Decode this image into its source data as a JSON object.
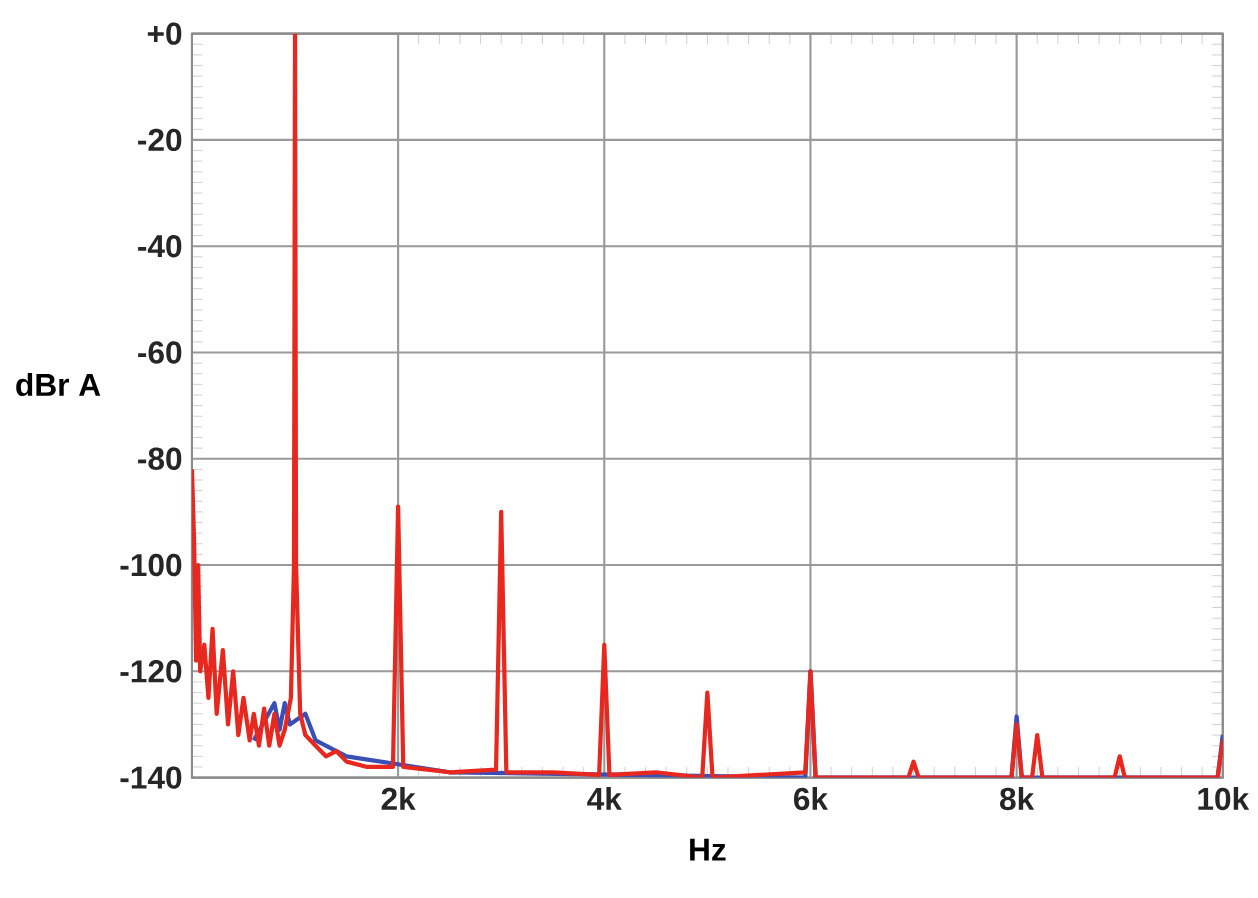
{
  "chart_data": {
    "type": "line",
    "xlabel": "Hz",
    "ylabel": "dBr A",
    "xlim": [
      0,
      10000
    ],
    "ylim": [
      -140,
      0
    ],
    "xticks": [
      {
        "value": 2000,
        "label": "2k"
      },
      {
        "value": 4000,
        "label": "4k"
      },
      {
        "value": 6000,
        "label": "6k"
      },
      {
        "value": 8000,
        "label": "8k"
      },
      {
        "value": 10000,
        "label": "10k"
      }
    ],
    "yticks": [
      -140,
      -120,
      -100,
      -80,
      -60,
      -40,
      -20,
      {
        "value": 0,
        "label": "+0"
      }
    ],
    "grid": true,
    "series": [
      {
        "color": "#3a4fb5",
        "x": [
          600,
          800,
          850,
          900,
          950,
          1100,
          1200,
          1500,
          2500,
          5950,
          6000,
          6050,
          7950,
          8000,
          8050,
          9950,
          10000
        ],
        "values": [
          -133,
          -126,
          -131,
          -126,
          -130,
          -128,
          -133,
          -136,
          -139,
          -140,
          -120,
          -140,
          -140,
          -128.5,
          -140,
          -140,
          -132
        ]
      },
      {
        "color": "#e8281e",
        "x": [
          0,
          20,
          40,
          60,
          80,
          120,
          160,
          200,
          240,
          300,
          350,
          400,
          450,
          500,
          560,
          600,
          650,
          700,
          750,
          800,
          850,
          900,
          960,
          990,
          1000,
          1010,
          1050,
          1100,
          1200,
          1300,
          1400,
          1500,
          1700,
          1950,
          2000,
          2050,
          2500,
          2950,
          3000,
          3050,
          3500,
          3950,
          4000,
          4050,
          4500,
          4950,
          5000,
          5050,
          5950,
          6000,
          6050,
          6950,
          7000,
          7050,
          7950,
          8000,
          8050,
          8150,
          8200,
          8250,
          8950,
          9000,
          9050,
          9950,
          10000
        ],
        "values": [
          -82,
          -95,
          -118,
          -100,
          -120,
          -115,
          -125,
          -112,
          -128,
          -116,
          -130,
          -120,
          -132,
          -125,
          -133,
          -128,
          -134,
          -127,
          -134,
          -128,
          -134,
          -131,
          -125,
          -100,
          0,
          -100,
          -128,
          -132,
          -134,
          -136,
          -135,
          -137,
          -138,
          -138,
          -89,
          -138,
          -139,
          -138.5,
          -90,
          -139,
          -139,
          -139.5,
          -115,
          -139.5,
          -139,
          -140,
          -124,
          -140,
          -139,
          -120,
          -140,
          -140,
          -137,
          -140,
          -140,
          -130,
          -140,
          -140,
          -132,
          -140,
          -140,
          -136,
          -140,
          -140,
          -133
        ]
      }
    ]
  }
}
